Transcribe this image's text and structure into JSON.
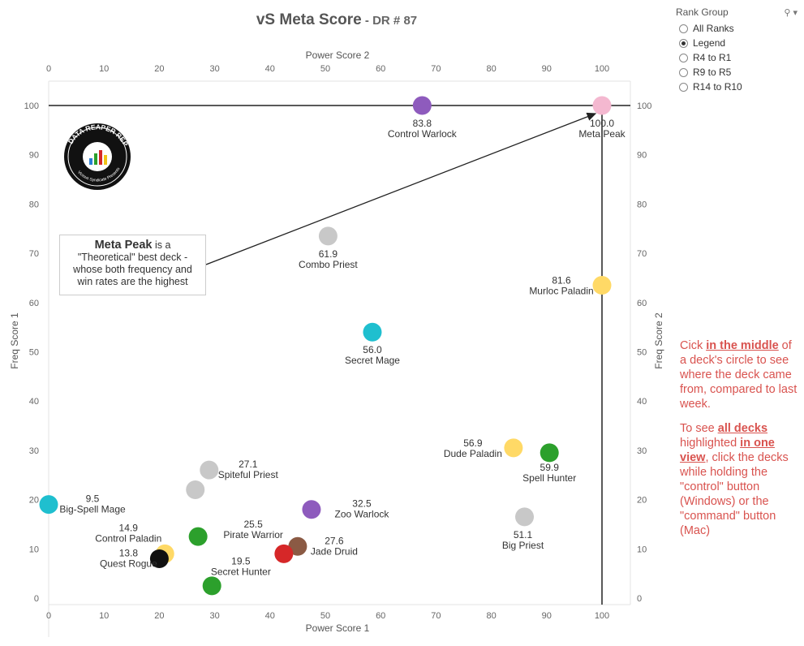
{
  "header": {
    "title": "vS Meta Score",
    "subtitle": " - DR # 87"
  },
  "filter": {
    "label": "Rank Group",
    "options": [
      "All Ranks",
      "Legend",
      "R4 to R1",
      "R9 to R5",
      "R14 to R10"
    ],
    "selected": "Legend"
  },
  "note": {
    "bold": "Meta Peak",
    "line1": " is a",
    "line2": "\"Theoretical\" best deck -",
    "line3": "whose both frequency and",
    "line4": "win rates are the highest"
  },
  "logo": {
    "text": "DATA REAPER REPORT",
    "tagline": "Vicious Syndicate Presents"
  },
  "instructions": {
    "p1_a": "Cick ",
    "p1_b": "in the middle",
    "p1_c": " of a deck's circle to see where the deck came from, compared to last week.",
    "p2_a": "To see ",
    "p2_b": "all decks ",
    "p2_c": " highlighted ",
    "p2_d": "in one view",
    "p2_e": ", click the decks while holding the \"control\" button (Windows) or the \"command\" button (Mac)"
  },
  "chart_data": {
    "type": "scatter",
    "xlabel": "Power Score 1",
    "xlabel_top": "Power Score 2",
    "ylabel": "Freq Score 1",
    "ylabel_right": "Freq Score 2",
    "x_range": [
      0,
      105
    ],
    "y_range": [
      0,
      105
    ],
    "x_ticks": [
      0,
      10,
      20,
      30,
      40,
      50,
      60,
      70,
      80,
      90,
      100
    ],
    "y_ticks": [
      0,
      10,
      20,
      30,
      40,
      50,
      60,
      70,
      80,
      90,
      100
    ],
    "grid": false,
    "reference_lines": {
      "x": 100,
      "y": 100
    },
    "points": [
      {
        "name": "Control Warlock",
        "score": "83.8",
        "x": 67.5,
        "y": 100,
        "color": "#8e5bbd"
      },
      {
        "name": "Meta Peak",
        "score": "100.0",
        "x": 100,
        "y": 100,
        "color": "#f4b8d0"
      },
      {
        "name": "Combo Priest",
        "score": "61.9",
        "x": 50.5,
        "y": 73.5,
        "color": "#c8c8c8"
      },
      {
        "name": "Murloc Paladin",
        "score": "81.6",
        "x": 100,
        "y": 63.5,
        "color": "#ffd966"
      },
      {
        "name": "Secret Mage",
        "score": "56.0",
        "x": 58.5,
        "y": 54,
        "color": "#1fbfcf"
      },
      {
        "name": "Dude Paladin",
        "score": "56.9",
        "x": 84,
        "y": 30.5,
        "color": "#ffd966"
      },
      {
        "name": "Spell Hunter",
        "score": "59.9",
        "x": 90.5,
        "y": 29.5,
        "color": "#2ca02c"
      },
      {
        "name": "Big Priest",
        "score": "51.1",
        "x": 86,
        "y": 16.5,
        "color": "#c8c8c8"
      },
      {
        "name": "Spiteful Priest",
        "score": "27.1",
        "x": 29,
        "y": 26,
        "color": "#c8c8c8"
      },
      {
        "name": "",
        "score": "",
        "x": 26.5,
        "y": 22,
        "color": "#c8c8c8"
      },
      {
        "name": "Big-Spell Mage",
        "score": "9.5",
        "x": 0,
        "y": 19,
        "color": "#1fbfcf"
      },
      {
        "name": "Zoo Warlock",
        "score": "32.5",
        "x": 47.5,
        "y": 18,
        "color": "#8e5bbd"
      },
      {
        "name": "Pirate Warrior",
        "score": "25.5",
        "x": 27,
        "y": 12.5,
        "color": "#2ca02c"
      },
      {
        "name": "Control Paladin",
        "score": "14.9",
        "x": 21,
        "y": 9,
        "color": "#ffd966"
      },
      {
        "name": "Quest Rogue",
        "score": "13.8",
        "x": 20,
        "y": 8,
        "color": "#111111"
      },
      {
        "name": "Jade Druid",
        "score": "27.6",
        "x": 45,
        "y": 10.5,
        "color": "#8b5a44"
      },
      {
        "name": "Secret Hunter",
        "score": "19.5",
        "x": 42.5,
        "y": 9,
        "color": "#d62728"
      },
      {
        "name": "",
        "score": "",
        "x": 29.5,
        "y": 2.5,
        "color": "#2ca02c"
      }
    ]
  }
}
